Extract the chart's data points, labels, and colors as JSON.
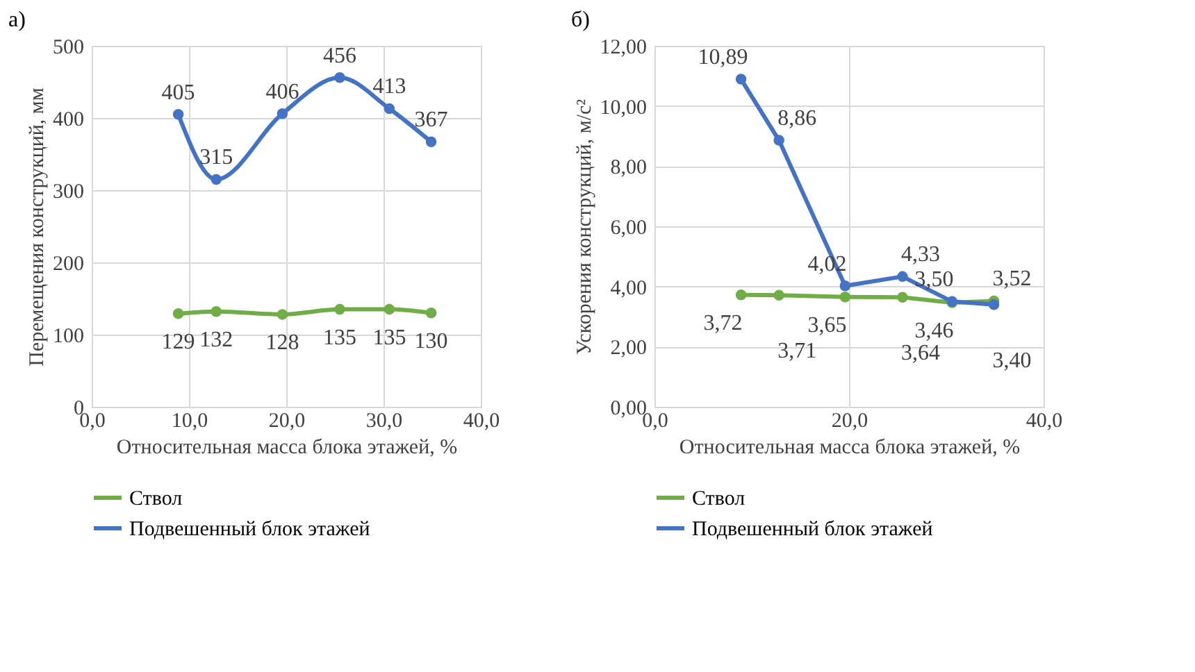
{
  "chart_data": [
    {
      "type": "line",
      "title": "а)",
      "xlabel": "Относительная масса блока этажей, %",
      "ylabel": "Перемещения  конструкций, мм",
      "x": [
        8.9,
        12.8,
        19.6,
        25.5,
        30.6,
        34.9
      ],
      "series": [
        {
          "name": "Ствол",
          "color": "#70ad47",
          "values": [
            129,
            132,
            128,
            135,
            135,
            130
          ]
        },
        {
          "name": "Подвешенный блок этажей",
          "color": "#4472c4",
          "values": [
            405,
            315,
            406,
            456,
            413,
            367
          ]
        }
      ],
      "xlim": [
        0,
        40
      ],
      "xticks": [
        {
          "value": 0,
          "label": "0,0"
        },
        {
          "value": 10,
          "label": "10,0"
        },
        {
          "value": 20,
          "label": "20,0"
        },
        {
          "value": 30,
          "label": "30,0"
        },
        {
          "value": 40,
          "label": "40,0"
        }
      ],
      "ylim": [
        0,
        500
      ],
      "yticks": [
        0,
        100,
        200,
        300,
        400,
        500
      ],
      "data_labels": true,
      "grid": true,
      "legend": "bottom",
      "marker": "circle",
      "line_style": "solid"
    },
    {
      "type": "line",
      "title": "б)",
      "xlabel": "Относительная масса блока этажей, %",
      "ylabel": "Ускорения конструкций, м/с²",
      "x": [
        8.9,
        12.8,
        19.6,
        25.5,
        30.6,
        34.9
      ],
      "series": [
        {
          "name": "Ствол",
          "color": "#70ad47",
          "values": [
            3.72,
            3.71,
            3.65,
            3.64,
            3.46,
            3.52
          ],
          "value_labels": [
            "3,72",
            "3,71",
            "3,65",
            "3,64",
            "3,46",
            "3,52"
          ]
        },
        {
          "name": "Подвешенный блок этажей",
          "color": "#4472c4",
          "values": [
            10.89,
            8.86,
            4.02,
            4.33,
            3.5,
            3.4
          ],
          "value_labels": [
            "10,89",
            "8,86",
            "4,02",
            "4,33",
            "3,50",
            "3,40"
          ]
        }
      ],
      "xlim": [
        0,
        40
      ],
      "xticks": [
        {
          "value": 0,
          "label": "0,0"
        },
        {
          "value": 20,
          "label": "20,0"
        },
        {
          "value": 40,
          "label": "40,0"
        }
      ],
      "ylim": [
        0,
        12
      ],
      "yticks": [
        {
          "value": 0,
          "label": "0,00"
        },
        {
          "value": 2,
          "label": "2,00"
        },
        {
          "value": 4,
          "label": "4,00"
        },
        {
          "value": 6,
          "label": "6,00"
        },
        {
          "value": 8,
          "label": "8,00"
        },
        {
          "value": 10,
          "label": "10,00"
        },
        {
          "value": 12,
          "label": "12,00"
        }
      ],
      "grid": true,
      "legend": "bottom",
      "marker": "circle",
      "line_style": "solid"
    }
  ]
}
